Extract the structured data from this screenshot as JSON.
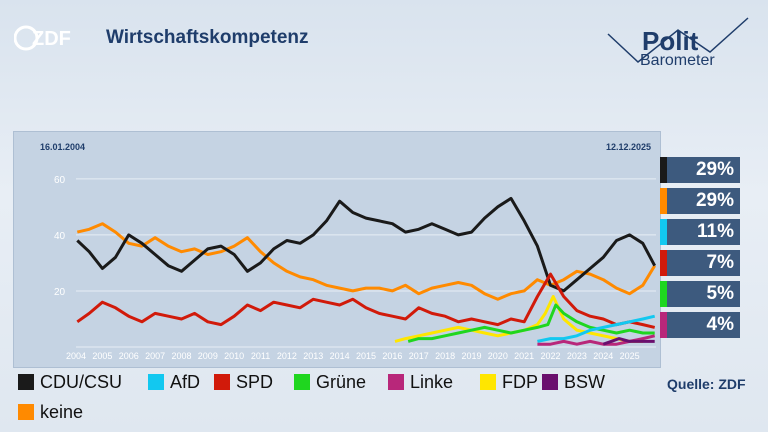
{
  "header": {
    "title": "Wirtschaftskompetenz",
    "logo_text": "ZDF",
    "brand_line1": "Polit",
    "brand_line2": "Barometer"
  },
  "source": "Quelle: ZDF",
  "colors": {
    "CDU/CSU": "#1a1a1a",
    "AfD": "#12c8f0",
    "SPD": "#d11a0a",
    "Grüne": "#1fd61f",
    "Linke": "#b8277a",
    "FDP": "#ffe600",
    "BSW": "#6a0f6e",
    "keine": "#ff8a00"
  },
  "chart_data": {
    "type": "line",
    "date_start": "16.01.2004",
    "date_end": "12.12.2025",
    "x_ticks": [
      "2004",
      "2005",
      "2006",
      "2007",
      "2008",
      "2009",
      "2010",
      "2011",
      "2012",
      "2013",
      "2014",
      "2015",
      "2016",
      "2017",
      "2018",
      "2019",
      "2020",
      "2021",
      "2022",
      "2023",
      "2024",
      "2025"
    ],
    "y_ticks": [
      "20",
      "40",
      "60"
    ],
    "ylim": [
      0,
      66
    ],
    "series": [
      {
        "name": "CDU/CSU",
        "x": [
          2004.05,
          2004.5,
          2005,
          2005.5,
          2006,
          2006.5,
          2007,
          2007.5,
          2008,
          2008.5,
          2009,
          2009.5,
          2010,
          2010.5,
          2011,
          2011.5,
          2012,
          2012.5,
          2013,
          2013.5,
          2014,
          2014.5,
          2015,
          2015.5,
          2016,
          2016.5,
          2017,
          2017.5,
          2018,
          2018.5,
          2019,
          2019.5,
          2020,
          2020.5,
          2021,
          2021.5,
          2022,
          2022.5,
          2023,
          2023.5,
          2024,
          2024.5,
          2025,
          2025.5,
          2025.95
        ],
        "y": [
          38,
          34,
          28,
          32,
          40,
          37,
          33,
          29,
          27,
          31,
          35,
          36,
          33,
          27,
          30,
          35,
          38,
          37,
          40,
          45,
          52,
          48,
          46,
          45,
          44,
          41,
          42,
          44,
          42,
          40,
          41,
          46,
          50,
          53,
          45,
          36,
          22,
          20,
          24,
          28,
          32,
          38,
          40,
          37,
          29
        ]
      },
      {
        "name": "SPD",
        "x": [
          2004.05,
          2004.5,
          2005,
          2005.5,
          2006,
          2006.5,
          2007,
          2007.5,
          2008,
          2008.5,
          2009,
          2009.5,
          2010,
          2010.5,
          2011,
          2011.5,
          2012,
          2012.5,
          2013,
          2013.5,
          2014,
          2014.5,
          2015,
          2015.5,
          2016,
          2016.5,
          2017,
          2017.5,
          2018,
          2018.5,
          2019,
          2019.5,
          2020,
          2020.5,
          2021,
          2021.5,
          2022,
          2022.5,
          2023,
          2023.5,
          2024,
          2024.5,
          2025,
          2025.5,
          2025.95
        ],
        "y": [
          9,
          12,
          16,
          14,
          11,
          9,
          12,
          11,
          10,
          12,
          9,
          8,
          11,
          15,
          13,
          16,
          15,
          14,
          17,
          16,
          15,
          17,
          14,
          12,
          11,
          10,
          14,
          12,
          11,
          9,
          10,
          9,
          8,
          10,
          9,
          18,
          26,
          18,
          13,
          11,
          10,
          8,
          9,
          8,
          7
        ]
      },
      {
        "name": "keine",
        "x": [
          2004.05,
          2004.5,
          2005,
          2005.5,
          2006,
          2006.5,
          2007,
          2007.5,
          2008,
          2008.5,
          2009,
          2009.5,
          2010,
          2010.5,
          2011,
          2011.5,
          2012,
          2012.5,
          2013,
          2013.5,
          2014,
          2014.5,
          2015,
          2015.5,
          2016,
          2016.5,
          2017,
          2017.5,
          2018,
          2018.5,
          2019,
          2019.5,
          2020,
          2020.5,
          2021,
          2021.5,
          2022,
          2022.5,
          2023,
          2023.5,
          2024,
          2024.5,
          2025,
          2025.5,
          2025.95
        ],
        "y": [
          41,
          42,
          44,
          41,
          37,
          36,
          39,
          36,
          34,
          35,
          33,
          34,
          36,
          39,
          34,
          30,
          27,
          25,
          24,
          22,
          21,
          20,
          21,
          21,
          20,
          22,
          19,
          21,
          22,
          23,
          22,
          19,
          17,
          19,
          20,
          24,
          22,
          24,
          27,
          26,
          24,
          21,
          19,
          22,
          29
        ]
      },
      {
        "name": "Grüne",
        "x": [
          2016.6,
          2017,
          2017.5,
          2018,
          2018.5,
          2019,
          2019.5,
          2020,
          2020.5,
          2021,
          2021.5,
          2021.9,
          2022.2,
          2022.5,
          2023,
          2023.5,
          2024,
          2024.5,
          2025,
          2025.5,
          2025.95
        ],
        "y": [
          2,
          3,
          3,
          4,
          5,
          6,
          7,
          6,
          5,
          6,
          7,
          8,
          15,
          12,
          9,
          7,
          6,
          5,
          6,
          5,
          5
        ]
      },
      {
        "name": "FDP",
        "x": [
          2016.1,
          2016.5,
          2017,
          2017.5,
          2018,
          2018.5,
          2019,
          2019.5,
          2020,
          2020.5,
          2021,
          2021.5,
          2021.8,
          2022.1,
          2022.5,
          2023,
          2023.5,
          2024,
          2024.5,
          2025,
          2025.5
        ],
        "y": [
          2,
          3,
          4,
          5,
          6,
          7,
          6,
          5,
          4,
          5,
          6,
          8,
          12,
          18,
          10,
          6,
          5,
          4,
          3,
          2,
          2
        ]
      },
      {
        "name": "AfD",
        "x": [
          2021.5,
          2022,
          2022.5,
          2023,
          2023.5,
          2024,
          2024.5,
          2025,
          2025.5,
          2025.95
        ],
        "y": [
          2,
          3,
          3,
          4,
          6,
          7,
          8,
          9,
          10,
          11
        ]
      },
      {
        "name": "Linke",
        "x": [
          2021.5,
          2022,
          2022.5,
          2023,
          2023.5,
          2024,
          2024.5,
          2025,
          2025.5,
          2025.95
        ],
        "y": [
          1,
          1,
          2,
          1,
          2,
          1,
          1,
          2,
          3,
          4
        ]
      },
      {
        "name": "BSW",
        "x": [
          2024.0,
          2024.3,
          2024.6,
          2025,
          2025.5,
          2025.95
        ],
        "y": [
          1,
          2,
          3,
          2,
          2,
          2
        ]
      }
    ],
    "current_values": [
      {
        "party": "CDU/CSU",
        "label": "29%"
      },
      {
        "party": "keine",
        "label": "29%"
      },
      {
        "party": "AfD",
        "label": "11%"
      },
      {
        "party": "SPD",
        "label": "7%"
      },
      {
        "party": "Grüne",
        "label": "5%"
      },
      {
        "party": "Linke",
        "label": "4%"
      }
    ],
    "legend": [
      "CDU/CSU",
      "AfD",
      "SPD",
      "Grüne",
      "Linke",
      "FDP",
      "BSW",
      "keine"
    ]
  }
}
